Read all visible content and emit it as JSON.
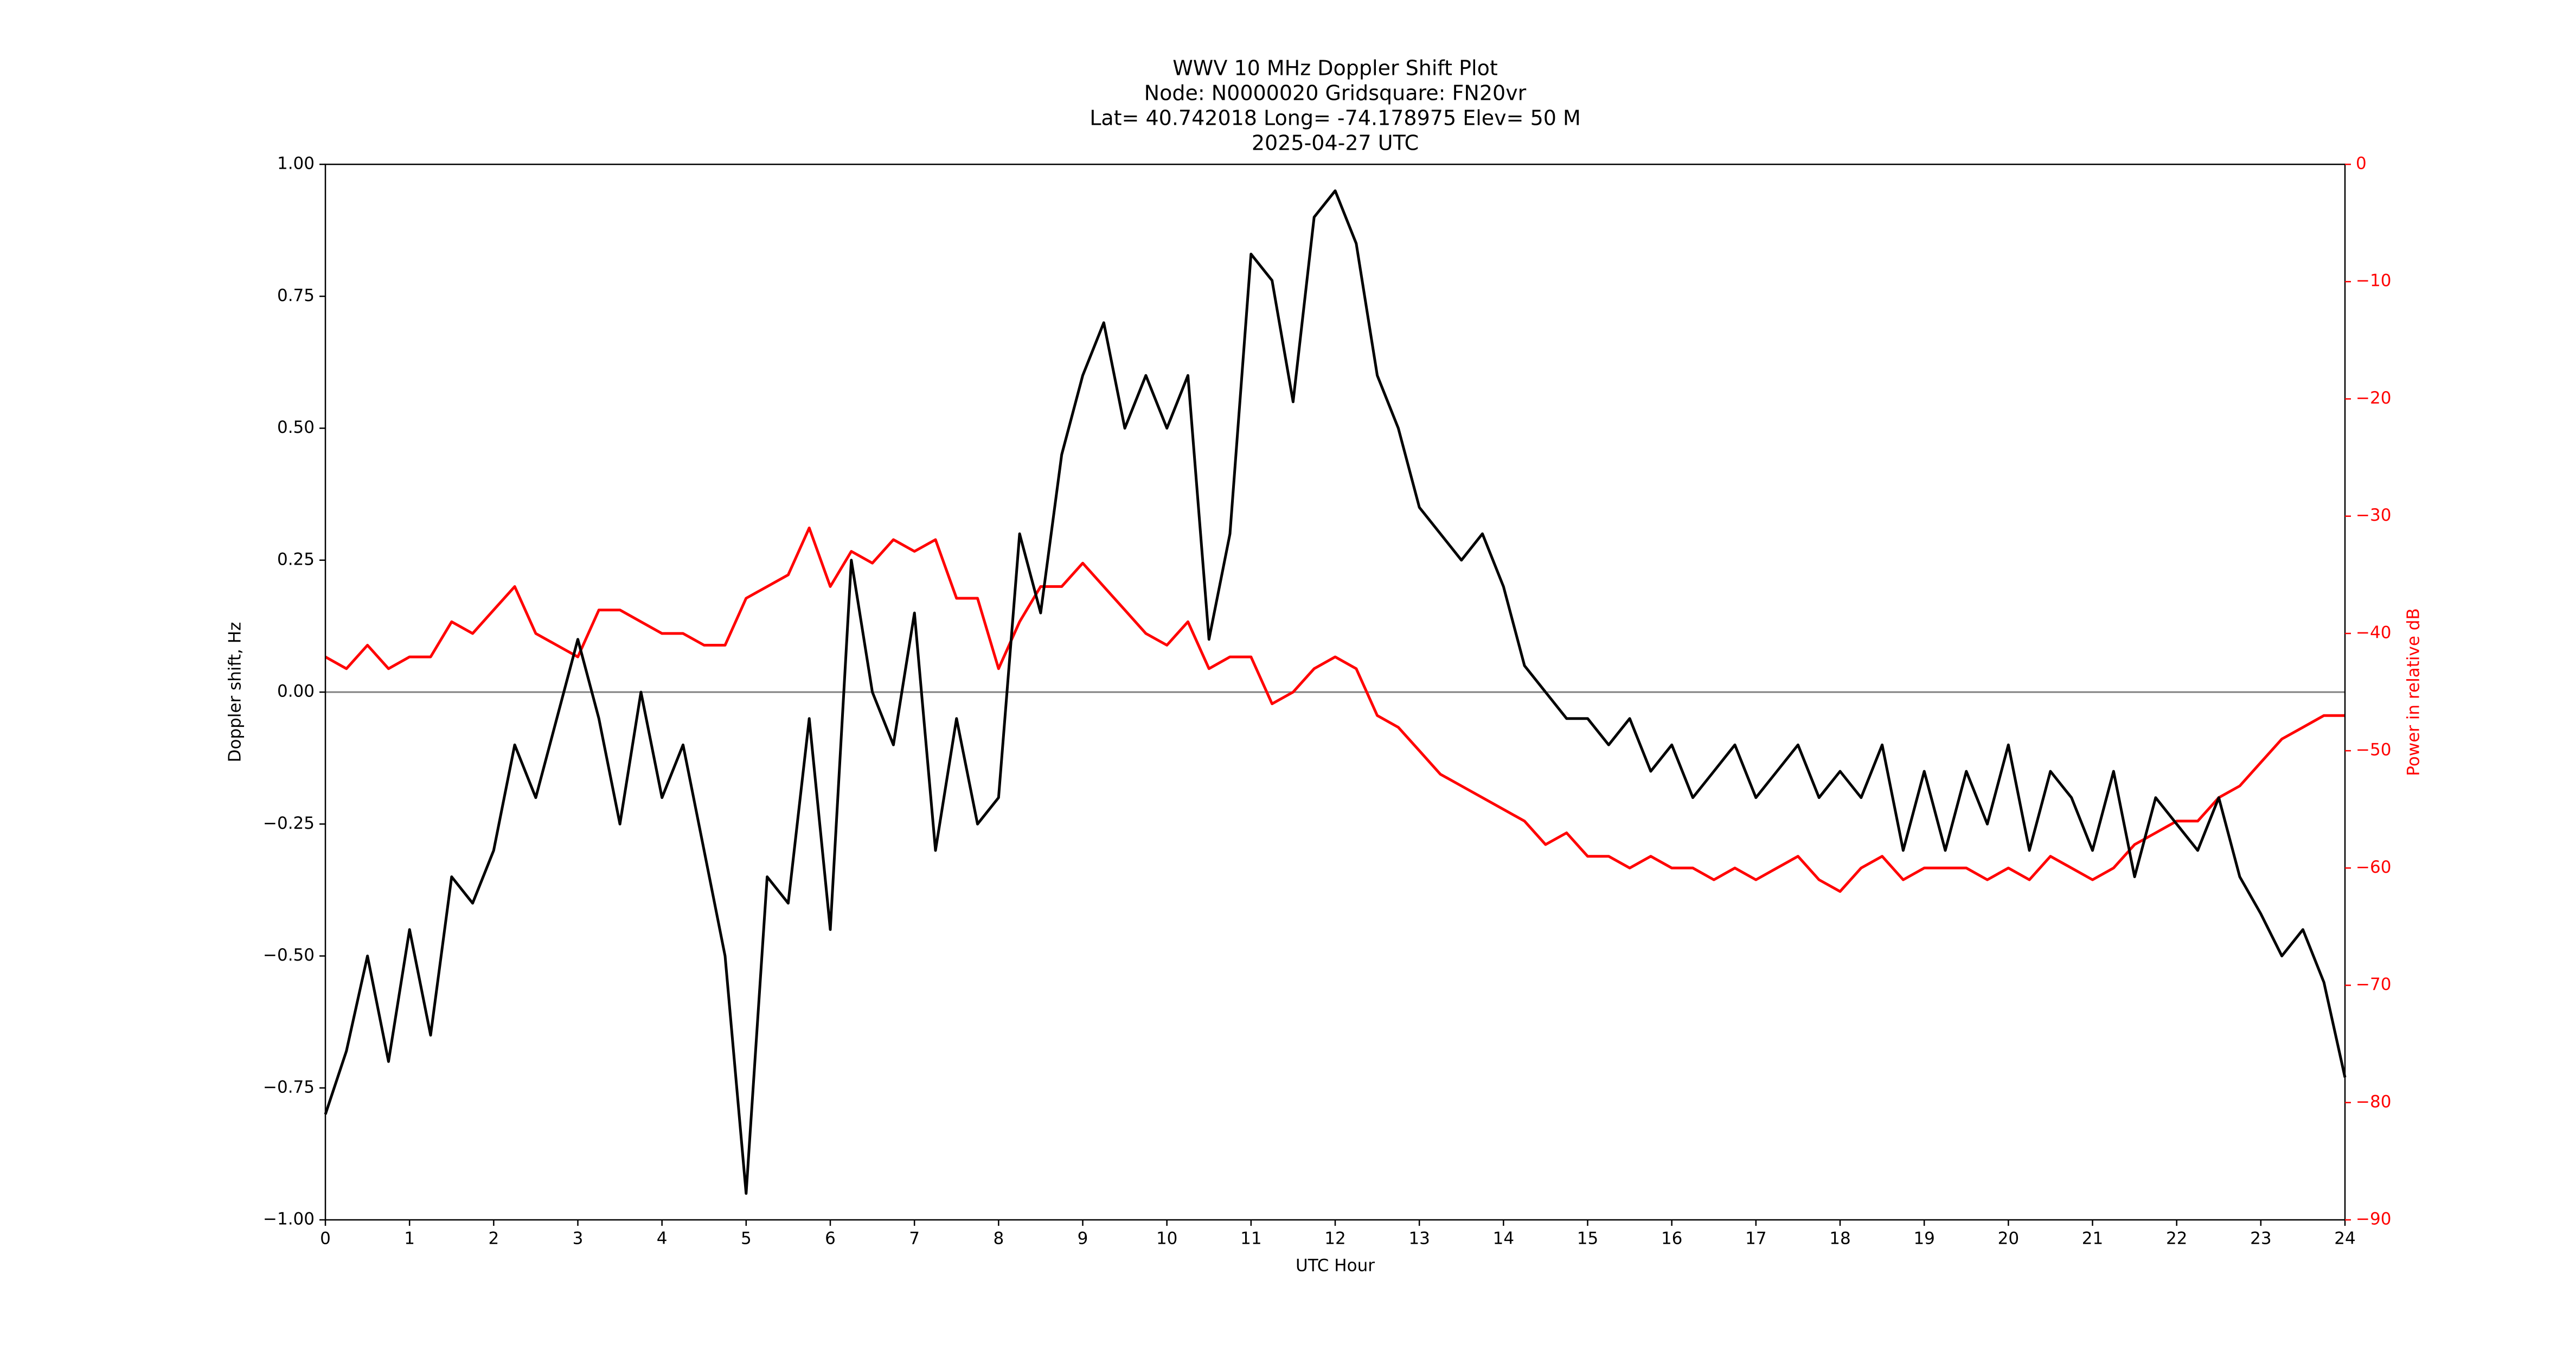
{
  "chart_data": {
    "type": "line",
    "title": [
      "WWV 10 MHz Doppler Shift Plot",
      "Node:  N0000020     Gridsquare:  FN20vr",
      "Lat= 40.742018    Long= -74.178975    Elev= 50 M",
      "2025-04-27  UTC"
    ],
    "xlabel": "UTC Hour",
    "ylabel": "Doppler shift, Hz",
    "y2label": "Power in relative dB",
    "x": [
      0,
      0.25,
      0.5,
      0.75,
      1,
      1.25,
      1.5,
      1.75,
      2,
      2.25,
      2.5,
      2.75,
      3,
      3.25,
      3.5,
      3.75,
      4,
      4.25,
      4.5,
      4.75,
      5,
      5.25,
      5.5,
      5.75,
      6,
      6.25,
      6.5,
      6.75,
      7,
      7.25,
      7.5,
      7.75,
      8,
      8.25,
      8.5,
      8.75,
      9,
      9.25,
      9.5,
      9.75,
      10,
      10.25,
      10.5,
      10.75,
      11,
      11.25,
      11.5,
      11.75,
      12,
      12.25,
      12.5,
      12.75,
      13,
      13.25,
      13.5,
      13.75,
      14,
      14.25,
      14.5,
      14.75,
      15,
      15.25,
      15.5,
      15.75,
      16,
      16.25,
      16.5,
      16.75,
      17,
      17.25,
      17.5,
      17.75,
      18,
      18.25,
      18.5,
      18.75,
      19,
      19.25,
      19.5,
      19.75,
      20,
      20.25,
      20.5,
      20.75,
      21,
      21.25,
      21.5,
      21.75,
      22,
      22.25,
      22.5,
      22.75,
      23,
      23.25,
      23.5,
      23.75,
      24
    ],
    "series": [
      {
        "color": "#000000",
        "axis": "y",
        "values": [
          -0.8,
          -0.68,
          -0.5,
          -0.7,
          -0.45,
          -0.65,
          -0.35,
          -0.4,
          -0.3,
          -0.1,
          -0.2,
          -0.05,
          0.1,
          -0.05,
          -0.25,
          0.0,
          -0.2,
          -0.1,
          -0.3,
          -0.5,
          -0.95,
          -0.35,
          -0.4,
          -0.05,
          -0.45,
          0.25,
          0.0,
          -0.1,
          0.15,
          -0.3,
          -0.05,
          -0.25,
          -0.2,
          0.3,
          0.15,
          0.45,
          0.6,
          0.7,
          0.5,
          0.6,
          0.5,
          0.6,
          0.1,
          0.3,
          0.83,
          0.78,
          0.55,
          0.9,
          0.95,
          0.85,
          0.6,
          0.5,
          0.35,
          0.3,
          0.25,
          0.3,
          0.2,
          0.05,
          0.0,
          -0.05,
          -0.05,
          -0.1,
          -0.05,
          -0.15,
          -0.1,
          -0.2,
          -0.15,
          -0.1,
          -0.2,
          -0.15,
          -0.1,
          -0.2,
          -0.15,
          -0.2,
          -0.1,
          -0.3,
          -0.15,
          -0.3,
          -0.15,
          -0.25,
          -0.1,
          -0.3,
          -0.15,
          -0.2,
          -0.3,
          -0.15,
          -0.35,
          -0.2,
          -0.25,
          -0.3,
          -0.2,
          -0.35,
          -0.42,
          -0.5,
          -0.45,
          -0.55,
          -0.73
        ]
      },
      {
        "color": "#ff0000",
        "axis": "y2",
        "values": [
          -42,
          -43,
          -41,
          -43,
          -42,
          -42,
          -39,
          -40,
          -38,
          -36,
          -40,
          -41,
          -42,
          -38,
          -38,
          -39,
          -40,
          -40,
          -41,
          -41,
          -37,
          -36,
          -35,
          -31,
          -36,
          -33,
          -34,
          -32,
          -33,
          -32,
          -37,
          -37,
          -43,
          -39,
          -36,
          -36,
          -34,
          -36,
          -38,
          -40,
          -41,
          -39,
          -43,
          -42,
          -42,
          -46,
          -45,
          -43,
          -42,
          -43,
          -47,
          -48,
          -50,
          -52,
          -53,
          -54,
          -55,
          -56,
          -58,
          -57,
          -59,
          -59,
          -60,
          -59,
          -60,
          -60,
          -61,
          -60,
          -61,
          -60,
          -59,
          -61,
          -62,
          -60,
          -59,
          -61,
          -60,
          -60,
          -60,
          -61,
          -60,
          -61,
          -59,
          -60,
          -61,
          -60,
          -58,
          -57,
          -56,
          -56,
          -54,
          -53,
          -51,
          -49,
          -48,
          -47,
          -47
        ]
      }
    ],
    "xlim": [
      0,
      24
    ],
    "xticks": [
      0,
      1,
      2,
      3,
      4,
      5,
      6,
      7,
      8,
      9,
      10,
      11,
      12,
      13,
      14,
      15,
      16,
      17,
      18,
      19,
      20,
      21,
      22,
      23,
      24
    ],
    "ylim": [
      -1,
      1
    ],
    "yticks": [
      {
        "value": -1,
        "label": "−1.00"
      },
      {
        "value": -0.75,
        "label": "−0.75"
      },
      {
        "value": -0.5,
        "label": "−0.50"
      },
      {
        "value": -0.25,
        "label": "−0.25"
      },
      {
        "value": 0,
        "label": "0.00"
      },
      {
        "value": 0.25,
        "label": "0.25"
      },
      {
        "value": 0.5,
        "label": "0.50"
      },
      {
        "value": 0.75,
        "label": "0.75"
      },
      {
        "value": 1,
        "label": "1.00"
      }
    ],
    "y2lim": [
      -90,
      0
    ],
    "y2ticks": [
      {
        "value": -90,
        "label": "−90"
      },
      {
        "value": -80,
        "label": "−80"
      },
      {
        "value": -70,
        "label": "−70"
      },
      {
        "value": -60,
        "label": "−60"
      },
      {
        "value": -50,
        "label": "−50"
      },
      {
        "value": -40,
        "label": "−40"
      },
      {
        "value": -30,
        "label": "−30"
      },
      {
        "value": -20,
        "label": "−20"
      },
      {
        "value": -10,
        "label": "−10"
      },
      0
    ],
    "y2color": "#ff0000",
    "reference_line": 0,
    "grid": false
  }
}
